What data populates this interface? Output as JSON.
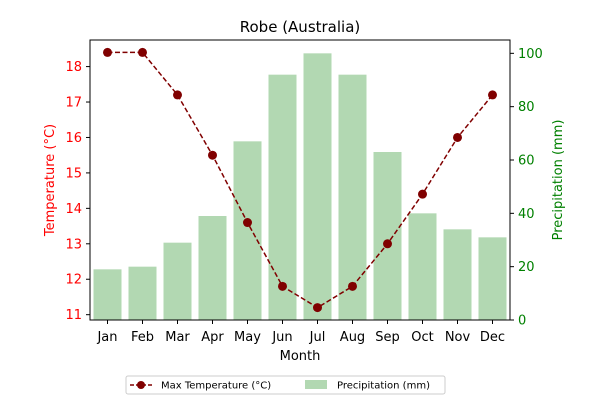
{
  "chart_data": {
    "type": "bar+line",
    "title": "Robe (Australia)",
    "xlabel": "Month",
    "categories": [
      "Jan",
      "Feb",
      "Mar",
      "Apr",
      "May",
      "Jun",
      "Jul",
      "Aug",
      "Sep",
      "Oct",
      "Nov",
      "Dec"
    ],
    "series": [
      {
        "name": "Max Temperature (°C)",
        "type": "line",
        "axis": "left",
        "color": "#800000",
        "values": [
          18.4,
          18.4,
          17.2,
          15.5,
          13.6,
          11.8,
          11.2,
          11.8,
          13.0,
          14.4,
          16.0,
          17.2
        ]
      },
      {
        "name": "Precipitation (mm)",
        "type": "bar",
        "axis": "right",
        "color": "#b2d8b2",
        "values": [
          19,
          20,
          29,
          39,
          67,
          92,
          100,
          92,
          63,
          40,
          34,
          31
        ]
      }
    ],
    "y_left": {
      "label": "Temperature (°C)",
      "color": "#ff0000",
      "ylim": [
        10.85,
        18.75
      ],
      "ticks": [
        11,
        12,
        13,
        14,
        15,
        16,
        17,
        18
      ]
    },
    "y_right": {
      "label": "Precipitation (mm)",
      "color": "#008000",
      "ylim": [
        0,
        105
      ],
      "ticks": [
        0,
        20,
        40,
        60,
        80,
        100
      ]
    },
    "grid": false,
    "legend": "bottom-center"
  }
}
